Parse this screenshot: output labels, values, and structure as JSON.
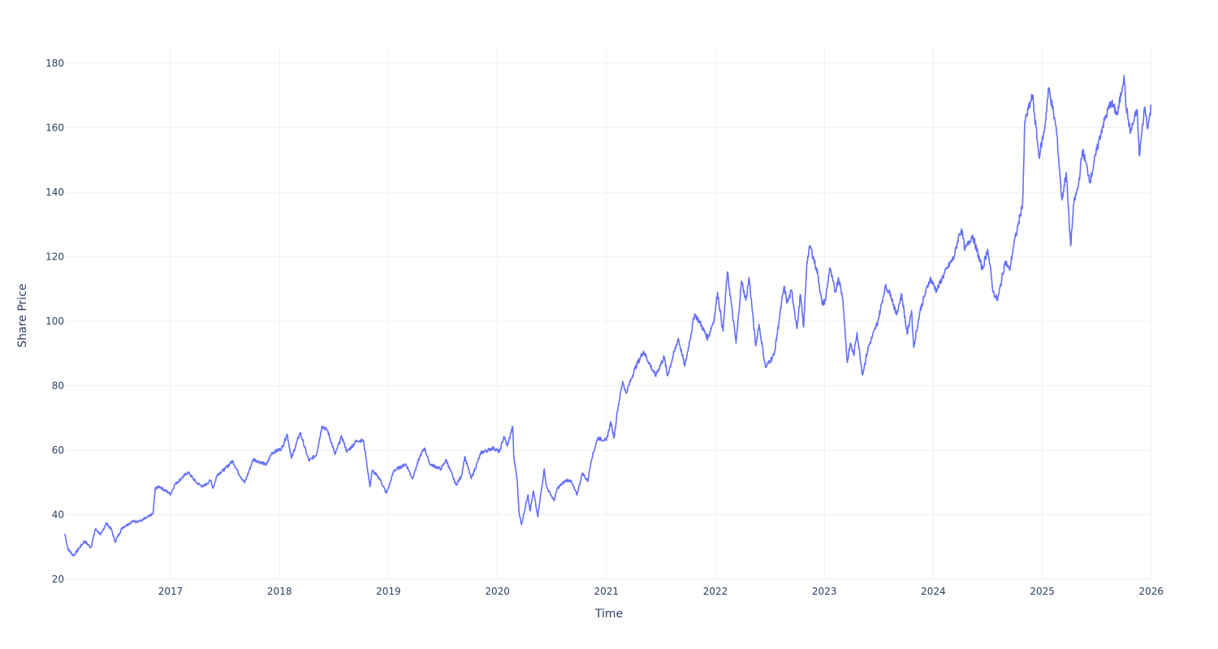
{
  "chart_data": {
    "type": "line",
    "title": "",
    "xlabel": "Time",
    "ylabel": "Share Price",
    "xlim": [
      2016.03,
      2026.0
    ],
    "ylim": [
      20,
      184
    ],
    "grid": true,
    "legend": "none",
    "line_color": "#636efa",
    "x_ticks": [
      "2017",
      "2018",
      "2019",
      "2020",
      "2021",
      "2022",
      "2023",
      "2024",
      "2025",
      "2026"
    ],
    "y_ticks": [
      "20",
      "40",
      "60",
      "80",
      "100",
      "120",
      "140",
      "160",
      "180"
    ],
    "series": [
      {
        "name": "Share Price",
        "points": [
          [
            2016.03,
            34.1
          ],
          [
            2016.06,
            29.3
          ],
          [
            2016.11,
            27.3
          ],
          [
            2016.21,
            31.8
          ],
          [
            2016.27,
            29.8
          ],
          [
            2016.31,
            35.6
          ],
          [
            2016.36,
            33.8
          ],
          [
            2016.41,
            37.4
          ],
          [
            2016.46,
            35.3
          ],
          [
            2016.49,
            31.6
          ],
          [
            2016.56,
            36.1
          ],
          [
            2016.65,
            37.9
          ],
          [
            2016.73,
            38.1
          ],
          [
            2016.8,
            39.4
          ],
          [
            2016.84,
            40.4
          ],
          [
            2016.86,
            48.2
          ],
          [
            2016.9,
            48.7
          ],
          [
            2017.0,
            46.4
          ],
          [
            2017.04,
            49.4
          ],
          [
            2017.16,
            53.2
          ],
          [
            2017.24,
            49.9
          ],
          [
            2017.3,
            48.7
          ],
          [
            2017.37,
            50.7
          ],
          [
            2017.39,
            48.2
          ],
          [
            2017.43,
            52.5
          ],
          [
            2017.5,
            54.2
          ],
          [
            2017.57,
            56.7
          ],
          [
            2017.62,
            53.2
          ],
          [
            2017.68,
            49.9
          ],
          [
            2017.76,
            57.2
          ],
          [
            2017.83,
            56.2
          ],
          [
            2017.88,
            55.5
          ],
          [
            2017.93,
            59.2
          ],
          [
            2018.02,
            60.5
          ],
          [
            2018.07,
            65.0
          ],
          [
            2018.11,
            57.5
          ],
          [
            2018.19,
            65.5
          ],
          [
            2018.27,
            56.7
          ],
          [
            2018.34,
            58.7
          ],
          [
            2018.39,
            67.5
          ],
          [
            2018.44,
            66.2
          ],
          [
            2018.51,
            58.7
          ],
          [
            2018.57,
            64.3
          ],
          [
            2018.62,
            59.5
          ],
          [
            2018.71,
            63.0
          ],
          [
            2018.77,
            63.0
          ],
          [
            2018.79,
            58.7
          ],
          [
            2018.83,
            48.7
          ],
          [
            2018.85,
            53.7
          ],
          [
            2018.92,
            51.2
          ],
          [
            2018.98,
            46.7
          ],
          [
            2019.01,
            49.4
          ],
          [
            2019.05,
            53.7
          ],
          [
            2019.16,
            55.7
          ],
          [
            2019.22,
            51.2
          ],
          [
            2019.29,
            58.2
          ],
          [
            2019.33,
            60.7
          ],
          [
            2019.38,
            55.7
          ],
          [
            2019.48,
            54.2
          ],
          [
            2019.53,
            57.0
          ],
          [
            2019.62,
            49.2
          ],
          [
            2019.67,
            52.0
          ],
          [
            2019.7,
            58.0
          ],
          [
            2019.76,
            51.2
          ],
          [
            2019.85,
            59.2
          ],
          [
            2019.96,
            60.7
          ],
          [
            2020.02,
            59.5
          ],
          [
            2020.06,
            64.3
          ],
          [
            2020.09,
            61.3
          ],
          [
            2020.14,
            67.3
          ],
          [
            2020.15,
            58.0
          ],
          [
            2020.18,
            51.2
          ],
          [
            2020.2,
            40.4
          ],
          [
            2020.22,
            36.9
          ],
          [
            2020.28,
            46.2
          ],
          [
            2020.3,
            41.2
          ],
          [
            2020.33,
            47.4
          ],
          [
            2020.37,
            39.4
          ],
          [
            2020.43,
            54.2
          ],
          [
            2020.45,
            48.7
          ],
          [
            2020.52,
            44.4
          ],
          [
            2020.55,
            48.2
          ],
          [
            2020.63,
            50.7
          ],
          [
            2020.67,
            50.7
          ],
          [
            2020.73,
            46.2
          ],
          [
            2020.78,
            52.9
          ],
          [
            2020.83,
            50.4
          ],
          [
            2020.86,
            56.9
          ],
          [
            2020.92,
            63.8
          ],
          [
            2021.0,
            63.0
          ],
          [
            2021.04,
            68.8
          ],
          [
            2021.07,
            63.8
          ],
          [
            2021.1,
            72.1
          ],
          [
            2021.15,
            81.4
          ],
          [
            2021.18,
            77.6
          ],
          [
            2021.26,
            85.2
          ],
          [
            2021.34,
            90.7
          ],
          [
            2021.45,
            83.1
          ],
          [
            2021.53,
            88.9
          ],
          [
            2021.56,
            83.1
          ],
          [
            2021.66,
            94.7
          ],
          [
            2021.72,
            86.0
          ],
          [
            2021.81,
            102.3
          ],
          [
            2021.86,
            99.5
          ],
          [
            2021.93,
            94.7
          ],
          [
            2021.99,
            100.8
          ],
          [
            2022.02,
            109.0
          ],
          [
            2022.07,
            96.9
          ],
          [
            2022.11,
            115.3
          ],
          [
            2022.19,
            93.2
          ],
          [
            2022.24,
            112.5
          ],
          [
            2022.28,
            106.5
          ],
          [
            2022.31,
            113.5
          ],
          [
            2022.37,
            92.3
          ],
          [
            2022.4,
            99.0
          ],
          [
            2022.46,
            85.7
          ],
          [
            2022.54,
            89.7
          ],
          [
            2022.59,
            101.5
          ],
          [
            2022.63,
            110.7
          ],
          [
            2022.66,
            105.7
          ],
          [
            2022.7,
            109.5
          ],
          [
            2022.75,
            97.7
          ],
          [
            2022.78,
            108.3
          ],
          [
            2022.81,
            98.2
          ],
          [
            2022.84,
            118.4
          ],
          [
            2022.87,
            123.4
          ],
          [
            2022.94,
            114.6
          ],
          [
            2022.98,
            105.2
          ],
          [
            2023.01,
            106.5
          ],
          [
            2023.05,
            116.6
          ],
          [
            2023.1,
            109.0
          ],
          [
            2023.13,
            113.5
          ],
          [
            2023.17,
            107.0
          ],
          [
            2023.21,
            87.2
          ],
          [
            2023.24,
            93.2
          ],
          [
            2023.27,
            89.4
          ],
          [
            2023.3,
            96.5
          ],
          [
            2023.35,
            83.4
          ],
          [
            2023.4,
            91.5
          ],
          [
            2023.49,
            99.8
          ],
          [
            2023.56,
            110.8
          ],
          [
            2023.61,
            108.3
          ],
          [
            2023.66,
            102.0
          ],
          [
            2023.71,
            108.3
          ],
          [
            2023.76,
            96.0
          ],
          [
            2023.8,
            103.3
          ],
          [
            2023.82,
            91.9
          ],
          [
            2023.88,
            103.5
          ],
          [
            2023.97,
            113.3
          ],
          [
            2024.03,
            109.5
          ],
          [
            2024.08,
            113.3
          ],
          [
            2024.13,
            116.6
          ],
          [
            2024.19,
            119.9
          ],
          [
            2024.23,
            125.9
          ],
          [
            2024.26,
            128.7
          ],
          [
            2024.29,
            122.1
          ],
          [
            2024.36,
            126.7
          ],
          [
            2024.45,
            116.1
          ],
          [
            2024.5,
            122.4
          ],
          [
            2024.55,
            109.0
          ],
          [
            2024.59,
            106.5
          ],
          [
            2024.66,
            118.6
          ],
          [
            2024.7,
            115.8
          ],
          [
            2024.74,
            124.1
          ],
          [
            2024.77,
            128.4
          ],
          [
            2024.82,
            136.7
          ],
          [
            2024.84,
            161.9
          ],
          [
            2024.91,
            170.0
          ],
          [
            2024.97,
            151.1
          ],
          [
            2025.02,
            159.4
          ],
          [
            2025.06,
            172.4
          ],
          [
            2025.13,
            159.4
          ],
          [
            2025.18,
            137.6
          ],
          [
            2025.22,
            146.1
          ],
          [
            2025.26,
            123.4
          ],
          [
            2025.29,
            136.7
          ],
          [
            2025.33,
            141.8
          ],
          [
            2025.37,
            153.1
          ],
          [
            2025.44,
            143.5
          ],
          [
            2025.5,
            153.1
          ],
          [
            2025.55,
            160.1
          ],
          [
            2025.63,
            168.0
          ],
          [
            2025.69,
            164.0
          ],
          [
            2025.75,
            176.2
          ],
          [
            2025.77,
            166.2
          ],
          [
            2025.81,
            158.6
          ],
          [
            2025.87,
            165.6
          ],
          [
            2025.89,
            151.3
          ],
          [
            2025.94,
            166.4
          ],
          [
            2025.97,
            160.1
          ],
          [
            2026.0,
            166.9
          ]
        ]
      }
    ]
  }
}
